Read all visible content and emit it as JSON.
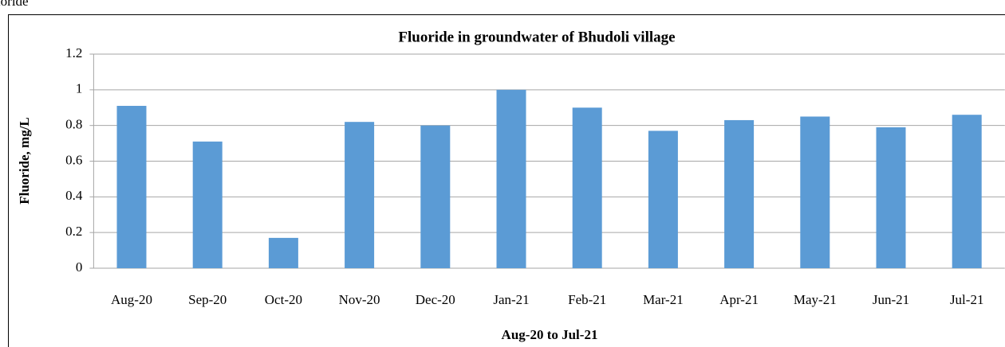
{
  "header": "Fluoride",
  "chart_data": {
    "type": "bar",
    "title": "Fluoride in groundwater of Bhudoli village",
    "x_label": "Aug-20 to Jul-21",
    "y_label": "Fluoride, mg/L",
    "categories": [
      "Aug-20",
      "Sep-20",
      "Oct-20",
      "Nov-20",
      "Dec-20",
      "Jan-21",
      "Feb-21",
      "Mar-21",
      "Apr-21",
      "May-21",
      "Jun-21",
      "Jul-21"
    ],
    "values": [
      0.91,
      0.71,
      0.17,
      0.82,
      0.8,
      1.0,
      0.9,
      0.77,
      0.83,
      0.85,
      0.79,
      0.86
    ],
    "color": "#5b9bd5",
    "ylim": [
      0,
      1.2
    ],
    "yticks": [
      0,
      0.2,
      0.4,
      0.6,
      0.8,
      1,
      1.2
    ],
    "grid": true
  }
}
